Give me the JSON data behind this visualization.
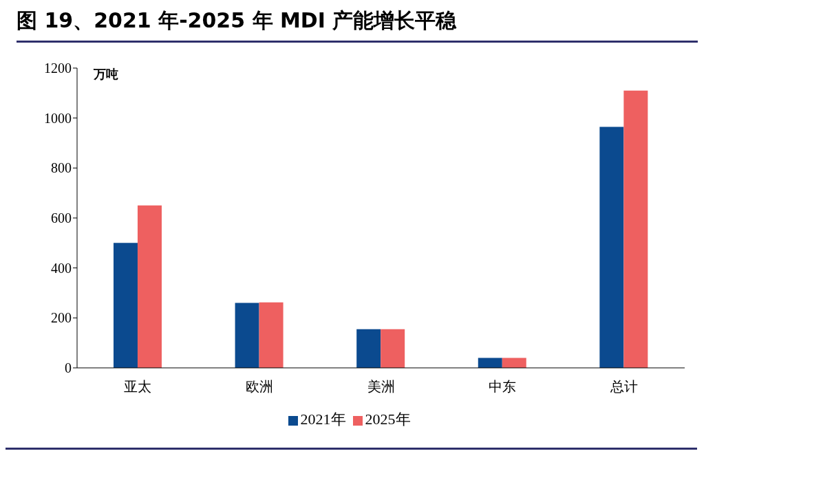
{
  "chart_data": {
    "type": "bar",
    "title": "图 19、2021 年-2025 年 MDI 产能增长平稳",
    "ylabel": "万吨",
    "categories": [
      "亚太",
      "欧洲",
      "美洲",
      "中东",
      "总计"
    ],
    "series": [
      {
        "name": "2021年",
        "color": "#0b4a8f",
        "values": [
          500,
          260,
          155,
          40,
          965
        ]
      },
      {
        "name": "2025年",
        "color": "#ee6060",
        "values": [
          650,
          262,
          155,
          40,
          1110
        ]
      }
    ],
    "ylim": [
      0,
      1200
    ],
    "yticks": [
      0,
      200,
      400,
      600,
      800,
      1000,
      1200
    ],
    "grid": false,
    "legend": "bottom"
  }
}
